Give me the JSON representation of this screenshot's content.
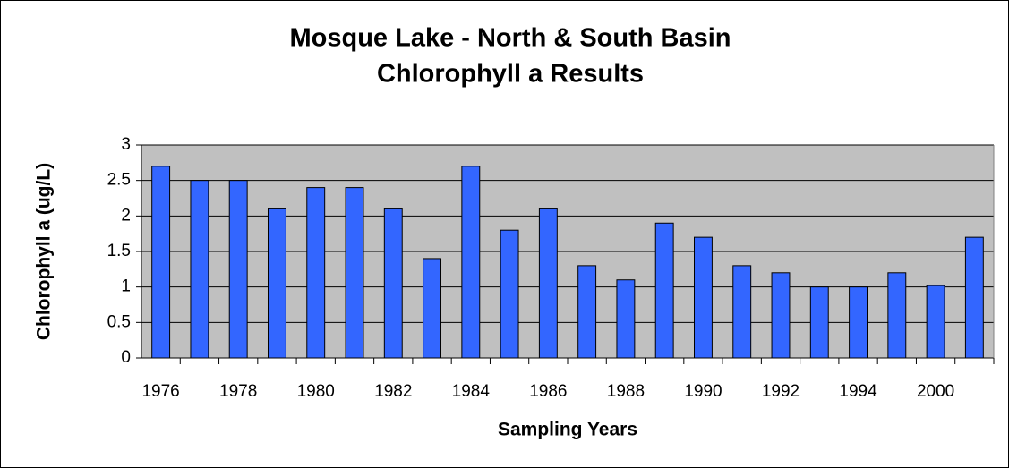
{
  "chart_data": {
    "type": "bar",
    "title": [
      "Mosque Lake - North & South Basin",
      "Chlorophyll a Results"
    ],
    "x_label": "Sampling Years",
    "y_label": "Chlorophyll a (ug/L)",
    "categories": [
      "1976",
      null,
      "1978",
      null,
      "1980",
      null,
      "1982",
      null,
      "1984",
      null,
      "1986",
      null,
      "1988",
      null,
      "1990",
      null,
      "1992",
      null,
      "1994",
      null,
      "2000",
      null
    ],
    "values": [
      2.7,
      2.5,
      2.5,
      2.1,
      2.4,
      2.4,
      2.1,
      1.4,
      2.7,
      1.8,
      2.1,
      1.3,
      1.1,
      1.9,
      1.7,
      1.3,
      1.2,
      1.0,
      1.0,
      1.2,
      1.02,
      1.7
    ],
    "color": "#3366ff",
    "ylim": [
      0,
      3
    ],
    "yticks": [
      0,
      0.5,
      1,
      1.5,
      2,
      2.5,
      3
    ],
    "grid": true
  }
}
